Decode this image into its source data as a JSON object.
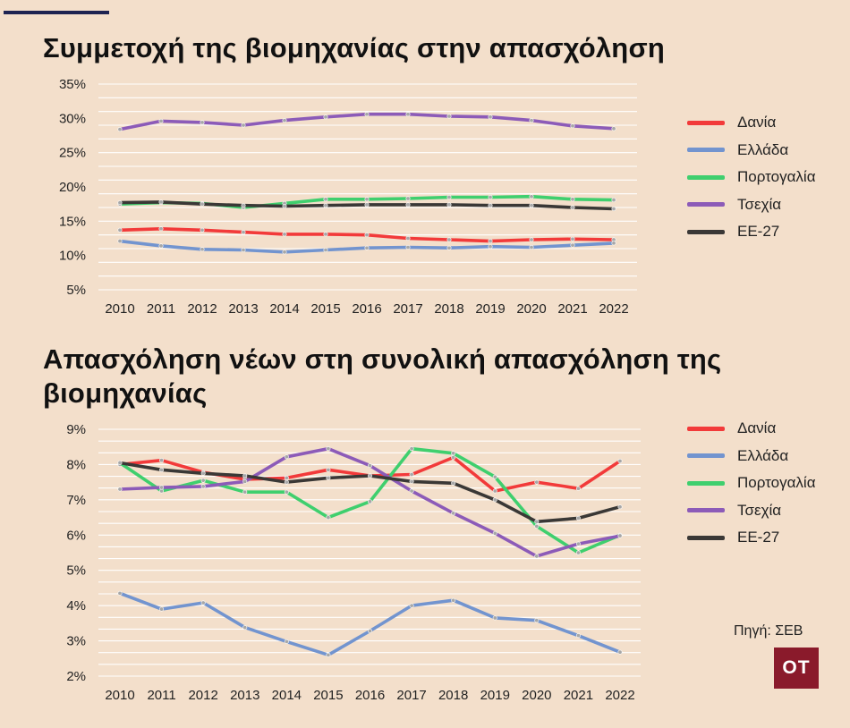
{
  "colors": {
    "background": "#f3dfcb",
    "grid": "#ffffff",
    "denmark": "#f23a3a",
    "greece": "#7294cf",
    "portugal": "#3fcf6e",
    "czechia": "#8c5bb8",
    "eu27": "#3a3836"
  },
  "source": "Πηγή: ΣΕΒ",
  "logo_text": "OT",
  "chart_data": [
    {
      "type": "line",
      "title": "Συμμετοχή της βιομηχανίας στην απασχόληση",
      "xlabel": "",
      "ylabel": "",
      "x": [
        "2010",
        "2011",
        "2012",
        "2013",
        "2014",
        "2015",
        "2016",
        "2017",
        "2018",
        "2019",
        "2020",
        "2021",
        "2022"
      ],
      "ylim": [
        5,
        35
      ],
      "yticks": [
        5,
        10,
        15,
        20,
        25,
        30,
        35
      ],
      "ytick_labels": [
        "5%",
        "10%",
        "15%",
        "20%",
        "25%",
        "30%",
        "35%"
      ],
      "grid": true,
      "legend_position": "right",
      "series": [
        {
          "name": "Δανία",
          "color": "#f23a3a",
          "values": [
            13.7,
            13.9,
            13.7,
            13.4,
            13.1,
            13.1,
            13.0,
            12.5,
            12.3,
            12.1,
            12.3,
            12.4,
            12.3
          ]
        },
        {
          "name": "Ελλάδα",
          "color": "#7294cf",
          "values": [
            12.1,
            11.4,
            10.9,
            10.8,
            10.5,
            10.8,
            11.1,
            11.2,
            11.1,
            11.3,
            11.2,
            11.5,
            11.8
          ]
        },
        {
          "name": "Πορτογαλία",
          "color": "#3fcf6e",
          "values": [
            17.5,
            17.7,
            17.6,
            17.0,
            17.6,
            18.2,
            18.2,
            18.3,
            18.5,
            18.5,
            18.6,
            18.2,
            18.1
          ]
        },
        {
          "name": "Τσεχία",
          "color": "#8c5bb8",
          "values": [
            28.4,
            29.6,
            29.4,
            29.0,
            29.7,
            30.2,
            30.6,
            30.6,
            30.3,
            30.2,
            29.7,
            28.9,
            28.5
          ]
        },
        {
          "name": "ΕΕ-27",
          "color": "#3a3836",
          "values": [
            17.7,
            17.8,
            17.5,
            17.3,
            17.2,
            17.3,
            17.4,
            17.4,
            17.4,
            17.3,
            17.3,
            17.0,
            16.8
          ]
        }
      ]
    },
    {
      "type": "line",
      "title": "Απασχόληση νέων στη συνολική απασχόληση της βιομηχανίας",
      "xlabel": "",
      "ylabel": "",
      "x": [
        "2010",
        "2011",
        "2012",
        "2013",
        "2014",
        "2015",
        "2016",
        "2017",
        "2018",
        "2019",
        "2020",
        "2021",
        "2022"
      ],
      "ylim": [
        2,
        9
      ],
      "yticks": [
        2,
        3,
        4,
        5,
        6,
        7,
        8,
        9
      ],
      "ytick_labels": [
        "2%",
        "3%",
        "4%",
        "5%",
        "6%",
        "7%",
        "8%",
        "9%"
      ],
      "grid": true,
      "legend_position": "right",
      "series": [
        {
          "name": "Δανία",
          "color": "#f23a3a",
          "values": [
            8.0,
            8.12,
            7.78,
            7.58,
            7.62,
            7.85,
            7.68,
            7.72,
            8.2,
            7.25,
            7.5,
            7.32,
            8.1
          ]
        },
        {
          "name": "Ελλάδα",
          "color": "#7294cf",
          "values": [
            4.35,
            3.9,
            4.08,
            3.38,
            2.98,
            2.6,
            3.28,
            4.0,
            4.15,
            3.65,
            3.58,
            3.15,
            2.68
          ]
        },
        {
          "name": "Πορτογαλία",
          "color": "#3fcf6e",
          "values": [
            8.05,
            7.25,
            7.55,
            7.22,
            7.22,
            6.5,
            6.95,
            8.45,
            8.32,
            7.65,
            6.25,
            5.5,
            6.0
          ]
        },
        {
          "name": "Τσεχία",
          "color": "#8c5bb8",
          "values": [
            7.3,
            7.35,
            7.38,
            7.52,
            8.22,
            8.45,
            7.97,
            7.25,
            6.62,
            6.05,
            5.4,
            5.75,
            5.98
          ]
        },
        {
          "name": "ΕΕ-27",
          "color": "#3a3836",
          "values": [
            8.05,
            7.85,
            7.75,
            7.68,
            7.5,
            7.62,
            7.68,
            7.52,
            7.47,
            7.0,
            6.38,
            6.48,
            6.8
          ]
        }
      ]
    }
  ]
}
